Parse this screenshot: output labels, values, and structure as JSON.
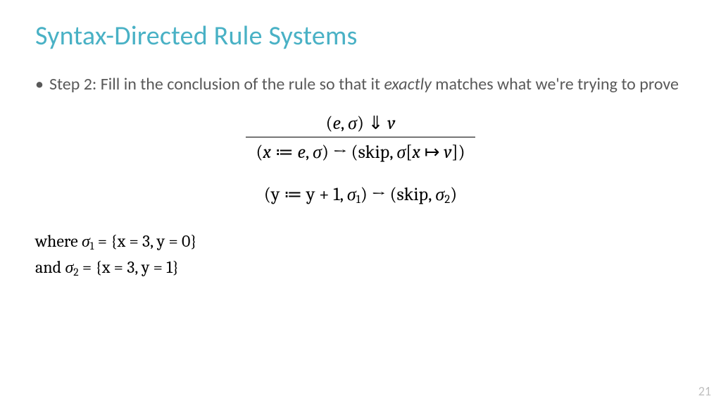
{
  "title": "Syntax-Directed Rule Systems",
  "title_color": "#49b1c5",
  "body_color": "#595959",
  "bullet": {
    "lead": "Step 2: Fill in the conclusion of the rule so that it ",
    "emph": "exactly",
    "tail": " matches what we're trying to prove"
  },
  "rule": {
    "premise": "(𝑒, 𝜎) ⇓ 𝑣",
    "conclusion": "(𝑥 ≔ 𝑒, 𝜎) → (skip, 𝜎[𝑥 ↦ 𝑣])"
  },
  "instance": "(y ≔ y + 1, 𝜎₁) → (skip, 𝜎₂)",
  "where1": "where 𝜎₁ = {x = 3, y = 0}",
  "where2": "and 𝜎₂ = {x = 3, y = 1}",
  "page_number": "21"
}
